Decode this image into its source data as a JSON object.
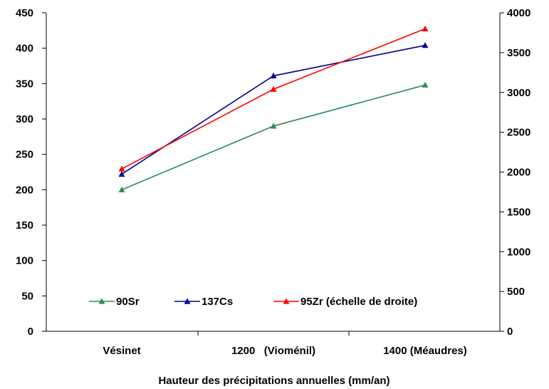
{
  "chart_data": {
    "type": "line",
    "categories": [
      "Vésinet",
      "1200   (Vioménil)",
      "1400 (Méaudres)"
    ],
    "xlabel": "Hauteur des précipitations annuelles (mm/an)",
    "ylim_left": [
      0,
      450
    ],
    "ylim_right": [
      0,
      4000
    ],
    "yticks_left": [
      0,
      50,
      100,
      150,
      200,
      250,
      300,
      350,
      400,
      450
    ],
    "yticks_right": [
      0,
      500,
      1000,
      1500,
      2000,
      2500,
      3000,
      3500,
      4000
    ],
    "grid": false,
    "legend_position": "bottom-center",
    "series": [
      {
        "name": "90Sr",
        "axis": "left",
        "color": "#2e8b57",
        "values": [
          200,
          290,
          348
        ]
      },
      {
        "name": "137Cs",
        "axis": "left",
        "color": "#00008b",
        "values": [
          222,
          361,
          404
        ]
      },
      {
        "name": "95Zr (échelle de droite)",
        "axis": "right",
        "color": "#ff0000",
        "values": [
          2040,
          3040,
          3800
        ]
      }
    ]
  }
}
